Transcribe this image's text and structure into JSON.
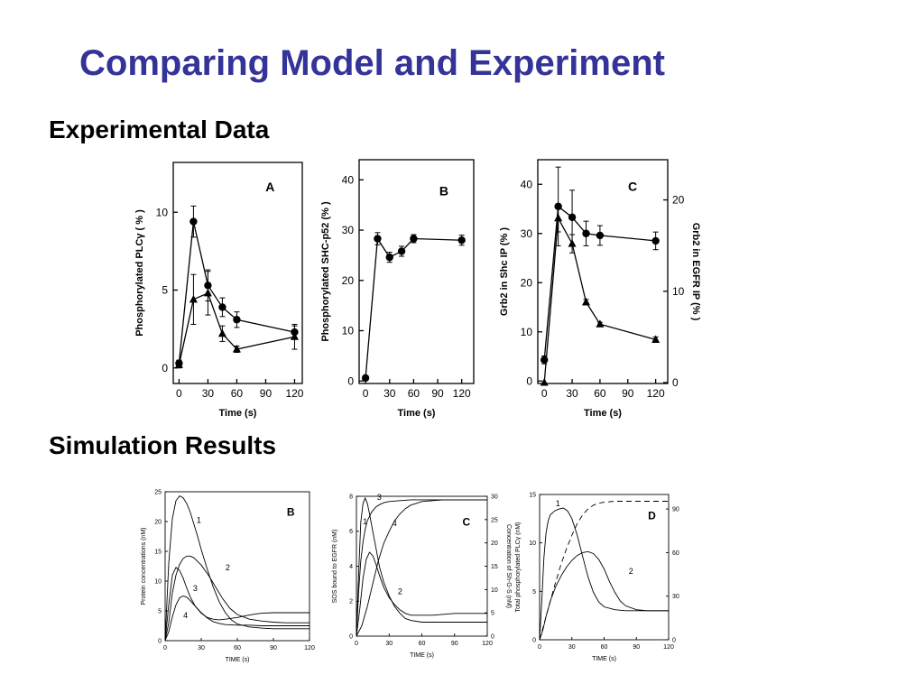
{
  "slide": {
    "title": "Comparing Model and Experiment",
    "section_experimental": "Experimental Data",
    "section_simulation": "Simulation Results"
  },
  "colors": {
    "title": "#333399",
    "ink": "#000000"
  },
  "chart_data": [
    {
      "id": "exp-a",
      "type": "line",
      "panel_label": "A",
      "xlabel": "Time (s)",
      "ylabel": "Phosphorylated PLCγ ( % )",
      "xlim": [
        -6,
        128
      ],
      "ylim": [
        -1,
        13.2
      ],
      "xticks": [
        0,
        30,
        60,
        90,
        120
      ],
      "yticks": [
        0,
        5,
        10
      ],
      "series": [
        {
          "name": "circles",
          "marker": "circle",
          "x": [
            0,
            15,
            30,
            45,
            60,
            120
          ],
          "y": [
            0.3,
            9.4,
            5.3,
            3.9,
            3.1,
            2.3
          ],
          "err": [
            0.2,
            1.0,
            1.0,
            0.6,
            0.5,
            0.4
          ]
        },
        {
          "name": "triangles",
          "marker": "triangle",
          "x": [
            0,
            15,
            30,
            45,
            60,
            120
          ],
          "y": [
            0.2,
            4.4,
            4.8,
            2.2,
            1.2,
            2.0
          ],
          "err": [
            0.2,
            1.6,
            1.4,
            0.5,
            0.2,
            0.8
          ]
        }
      ]
    },
    {
      "id": "exp-b",
      "type": "line",
      "panel_label": "B",
      "xlabel": "Time (s)",
      "ylabel": "Phosphorylated SHC-p52 (% )",
      "xlim": [
        -8,
        135
      ],
      "ylim": [
        -0.5,
        44
      ],
      "xticks": [
        0,
        30,
        60,
        90,
        120
      ],
      "yticks": [
        0,
        10,
        20,
        30,
        40
      ],
      "series": [
        {
          "name": "circles",
          "marker": "circle",
          "x": [
            0,
            15,
            30,
            45,
            60,
            120
          ],
          "y": [
            0.6,
            28.3,
            24.6,
            25.8,
            28.3,
            28.0
          ],
          "err": [
            0.3,
            1.2,
            1.0,
            1.0,
            0.8,
            1.0
          ]
        }
      ]
    },
    {
      "id": "exp-c",
      "type": "line",
      "panel_label": "C",
      "xlabel": "Time (s)",
      "ylabel": "Grb2 in Shc IP (% )",
      "ylabel_right": "Grb2 in EGFR IP (% )",
      "xlim": [
        -7,
        133
      ],
      "ylim": [
        -0.5,
        45
      ],
      "ylim_right": [
        -0.1,
        24.4
      ],
      "xticks": [
        0,
        30,
        60,
        90,
        120
      ],
      "yticks": [
        0,
        10,
        20,
        30,
        40
      ],
      "yticks_right": [
        0,
        10,
        20
      ],
      "series": [
        {
          "name": "Grb2 in Shc IP",
          "marker": "circle",
          "axis": "left",
          "x": [
            0,
            15,
            30,
            45,
            60,
            120
          ],
          "y": [
            4.3,
            35.5,
            33.3,
            30.0,
            29.6,
            28.5
          ],
          "err": [
            0.8,
            8.0,
            5.5,
            2.5,
            2.0,
            1.8
          ]
        },
        {
          "name": "Grb2 in EGFR IP",
          "marker": "triangle",
          "axis": "right",
          "x": [
            0,
            15,
            30,
            45,
            60,
            120
          ],
          "y": [
            0,
            18.0,
            15.2,
            8.8,
            6.4,
            4.7
          ],
          "err": [
            0,
            1.5,
            1.0,
            0.3,
            0.2,
            0.3
          ]
        }
      ]
    },
    {
      "id": "sim-b",
      "type": "line",
      "panel_label": "B",
      "xlabel": "TIME (s)",
      "ylabel": "Protein concentrations (nM)",
      "xlim": [
        0,
        120
      ],
      "ylim": [
        0,
        25
      ],
      "xticks": [
        0,
        30,
        60,
        90,
        120
      ],
      "yticks": [
        0,
        5,
        10,
        15,
        20,
        25
      ],
      "curve_labels": [
        {
          "text": "1",
          "x": 28,
          "y": 19.8
        },
        {
          "text": "2",
          "x": 52,
          "y": 11.8
        },
        {
          "text": "3",
          "x": 25,
          "y": 8.3
        },
        {
          "text": "4",
          "x": 17,
          "y": 3.8
        }
      ],
      "series": [
        {
          "name": "1",
          "x": [
            0,
            3,
            6,
            9,
            12,
            15,
            18,
            21,
            24,
            27,
            30,
            35,
            40,
            45,
            50,
            55,
            60,
            70,
            80,
            90,
            100,
            110,
            120
          ],
          "y": [
            0,
            13,
            20.5,
            23.5,
            24.3,
            24,
            23,
            21.5,
            19.5,
            17.5,
            15.3,
            12,
            9,
            6.5,
            4.7,
            3.5,
            2.8,
            2.3,
            2.1,
            2.0,
            2.0,
            2.0,
            2.0
          ]
        },
        {
          "name": "2",
          "x": [
            0,
            3,
            6,
            9,
            12,
            15,
            18,
            21,
            24,
            30,
            36,
            42,
            48,
            54,
            60,
            70,
            80,
            90,
            100,
            110,
            120
          ],
          "y": [
            0,
            3,
            8,
            11,
            12.8,
            13.8,
            14.2,
            14.2,
            13.9,
            12.7,
            11,
            9,
            7,
            5.4,
            4.4,
            3.6,
            3.3,
            3.1,
            3.0,
            3.0,
            3.0
          ]
        },
        {
          "name": "3",
          "x": [
            0,
            3,
            6,
            9,
            12,
            15,
            18,
            21,
            25,
            30,
            35,
            40,
            45,
            50,
            60,
            70,
            80,
            90,
            100,
            110,
            120
          ],
          "y": [
            0,
            6,
            11,
            12.3,
            11.8,
            10.5,
            8.8,
            7.3,
            5.8,
            4.6,
            3.9,
            3.6,
            3.5,
            3.6,
            3.9,
            4.3,
            4.6,
            4.7,
            4.7,
            4.7,
            4.7
          ]
        },
        {
          "name": "4",
          "x": [
            0,
            3,
            6,
            9,
            12,
            15,
            18,
            21,
            25,
            30,
            35,
            40,
            45,
            50,
            60,
            70,
            80,
            90,
            100,
            110,
            120
          ],
          "y": [
            0,
            1.5,
            4,
            6,
            7.2,
            7.5,
            7.3,
            6.7,
            5.8,
            4.7,
            3.8,
            3.2,
            2.9,
            2.7,
            2.6,
            2.6,
            2.5,
            2.5,
            2.5,
            2.5,
            2.5
          ]
        }
      ]
    },
    {
      "id": "sim-c",
      "type": "line",
      "panel_label": "C",
      "xlabel": "TIME (s)",
      "ylabel": "SOS bound to EGFR (nM)",
      "ylabel_right": "Concentration of Sh-G-S (nM)",
      "xlim": [
        0,
        120
      ],
      "ylim": [
        0,
        8
      ],
      "ylim_right": [
        0,
        30
      ],
      "xticks": [
        0,
        30,
        60,
        90,
        120
      ],
      "yticks": [
        0,
        2,
        4,
        6,
        8
      ],
      "yticks_right": [
        0,
        5,
        10,
        15,
        20,
        25,
        30
      ],
      "curve_labels": [
        {
          "text": "3",
          "x": 21,
          "y": 7.8
        },
        {
          "text": "1",
          "x": 8,
          "y": 6.4
        },
        {
          "text": "4",
          "x": 35,
          "y": 6.3
        },
        {
          "text": "2",
          "x": 40,
          "y": 2.4
        }
      ],
      "series": [
        {
          "name": "1",
          "x": [
            0,
            2,
            4,
            6,
            8,
            10,
            12,
            15,
            18,
            21,
            25,
            30,
            35,
            40,
            45,
            50,
            60,
            70,
            80,
            90,
            100,
            110,
            120
          ],
          "y": [
            0,
            3.5,
            6.5,
            7.6,
            7.9,
            7.6,
            7.0,
            6.0,
            5.0,
            4.0,
            3.1,
            2.3,
            1.7,
            1.3,
            1.0,
            0.9,
            0.8,
            0.8,
            0.8,
            0.8,
            0.8,
            0.8,
            0.8
          ]
        },
        {
          "name": "2",
          "x": [
            0,
            3,
            6,
            9,
            12,
            15,
            18,
            21,
            25,
            30,
            35,
            40,
            45,
            50,
            55,
            60,
            70,
            80,
            90,
            100,
            110,
            120
          ],
          "y": [
            0,
            1.5,
            3.3,
            4.4,
            4.8,
            4.6,
            4.1,
            3.5,
            2.8,
            2.2,
            1.8,
            1.5,
            1.3,
            1.2,
            1.2,
            1.2,
            1.2,
            1.25,
            1.3,
            1.3,
            1.3,
            1.3
          ]
        },
        {
          "name": "3",
          "x": [
            0,
            2,
            4,
            6,
            8,
            10,
            14,
            18,
            22,
            26,
            30,
            40,
            50,
            60,
            80,
            100,
            120
          ],
          "y": [
            0,
            2.5,
            4.3,
            5.4,
            6.1,
            6.6,
            7.1,
            7.4,
            7.55,
            7.65,
            7.7,
            7.75,
            7.8,
            7.8,
            7.8,
            7.8,
            7.8
          ]
        },
        {
          "name": "4",
          "x": [
            0,
            5,
            10,
            15,
            20,
            25,
            30,
            35,
            40,
            45,
            50,
            55,
            60,
            70,
            80,
            90,
            100,
            110,
            120
          ],
          "y": [
            0,
            0.6,
            1.7,
            3.0,
            4.3,
            5.3,
            6.0,
            6.6,
            7.0,
            7.3,
            7.5,
            7.6,
            7.7,
            7.75,
            7.8,
            7.8,
            7.8,
            7.8,
            7.8
          ]
        }
      ]
    },
    {
      "id": "sim-d",
      "type": "line",
      "panel_label": "D",
      "xlabel": "TIME (s)",
      "ylabel": "Total phosphorylated PLCγ (nM)",
      "xlim": [
        0,
        120
      ],
      "ylim": [
        0,
        15
      ],
      "ylim_right": [
        0,
        100
      ],
      "xticks": [
        0,
        30,
        60,
        90,
        120
      ],
      "yticks": [
        0,
        5,
        10,
        15
      ],
      "yticks_right": [
        0,
        30,
        60,
        90
      ],
      "curve_labels": [
        {
          "text": "1",
          "x": 17,
          "y": 13.8
        },
        {
          "text": "2",
          "x": 85,
          "y": 6.8
        }
      ],
      "series": [
        {
          "name": "1",
          "style": "solid",
          "x": [
            0,
            2,
            4,
            6,
            8,
            10,
            14,
            18,
            22,
            26,
            30,
            35,
            40,
            45,
            50,
            55,
            60,
            70,
            80,
            90,
            100,
            110,
            120
          ],
          "y": [
            0,
            4,
            8.5,
            11,
            12.3,
            12.9,
            13.3,
            13.5,
            13.6,
            13.3,
            12.5,
            10.8,
            8.6,
            6.5,
            4.9,
            3.9,
            3.4,
            3.1,
            3.0,
            3.0,
            3.0,
            3.0,
            3.0
          ]
        },
        {
          "name": "2",
          "style": "solid",
          "x": [
            0,
            3,
            6,
            10,
            15,
            20,
            25,
            30,
            35,
            40,
            45,
            50,
            55,
            60,
            65,
            70,
            75,
            80,
            90,
            100,
            110,
            120
          ],
          "y": [
            0,
            1.0,
            2.4,
            4.0,
            5.5,
            6.6,
            7.5,
            8.2,
            8.7,
            9.0,
            9.1,
            8.9,
            8.3,
            7.3,
            6.0,
            4.9,
            4.0,
            3.5,
            3.1,
            3.0,
            3.0,
            3.0
          ]
        },
        {
          "name": "dashed",
          "style": "dashed",
          "x": [
            0,
            5,
            10,
            15,
            20,
            25,
            30,
            35,
            40,
            45,
            50,
            55,
            60,
            70,
            80,
            90,
            100,
            110,
            120
          ],
          "y": [
            0,
            2.0,
            4.0,
            6.0,
            7.8,
            9.4,
            10.8,
            12.0,
            12.9,
            13.5,
            13.9,
            14.1,
            14.2,
            14.3,
            14.3,
            14.3,
            14.3,
            14.3,
            14.3
          ]
        }
      ]
    }
  ]
}
